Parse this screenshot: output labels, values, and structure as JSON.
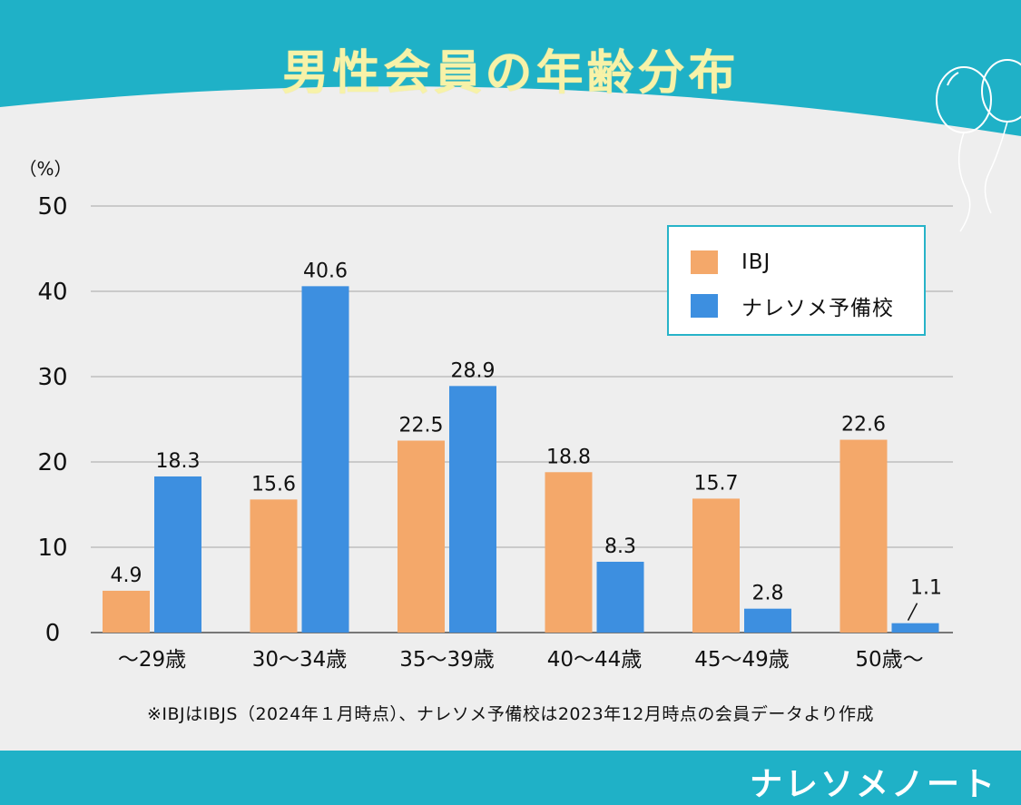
{
  "title": "男性会員の年齢分布",
  "chart_data": {
    "type": "bar",
    "ylabel": "（%）",
    "ylim": [
      0,
      50
    ],
    "yticks": [
      0,
      10,
      20,
      30,
      40,
      50
    ],
    "categories": [
      "～29歳",
      "30～34歳",
      "35～39歳",
      "40～44歳",
      "45～49歳",
      "50歳～"
    ],
    "series": [
      {
        "name": "IBJ",
        "color": "#f4a86a",
        "values": [
          4.9,
          15.6,
          22.5,
          18.8,
          15.7,
          22.6
        ]
      },
      {
        "name": "ナレソメ予備校",
        "color": "#3d8fe0",
        "values": [
          18.3,
          40.6,
          28.9,
          8.3,
          2.8,
          1.1
        ]
      }
    ],
    "legend_position": "top-right",
    "grid": true
  },
  "footnote": "※IBJはIBJS（2024年１月時点）、ナレソメ予備校は2023年12月時点の会員データより作成",
  "brand": "ナレソメノート",
  "colors": {
    "header": "#1fb1c7",
    "title": "#f7f2a8",
    "ibj": "#f4a86a",
    "naresome": "#3d8fe0",
    "grid": "#bdbdbd",
    "legend_border": "#27b3c8"
  }
}
